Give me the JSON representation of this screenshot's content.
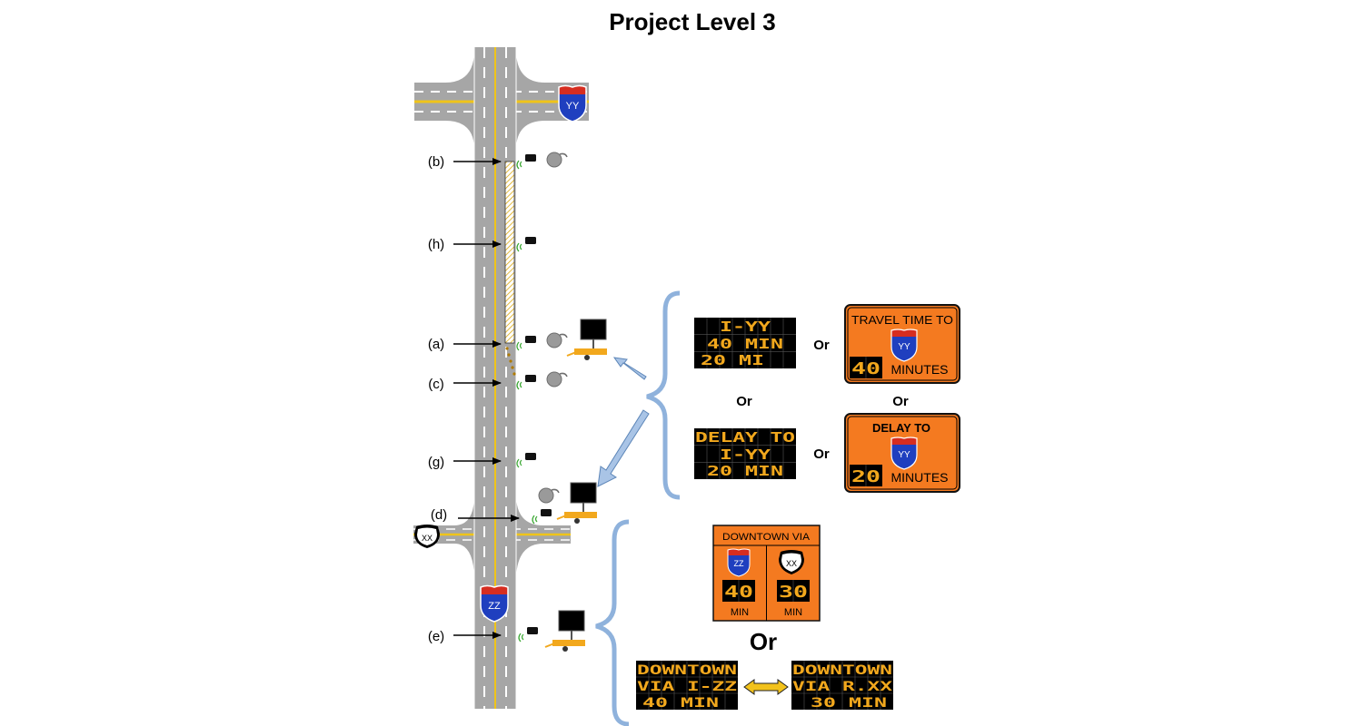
{
  "title": "Project Level 3",
  "labels": {
    "b": "(b)",
    "h": "(h)",
    "a": "(a)",
    "c": "(c)",
    "g": "(g)",
    "d": "(d)",
    "e": "(e)"
  },
  "shields": {
    "yy": "YY",
    "xx": "XX",
    "zz": "ZZ"
  },
  "or_word": "Or",
  "dms": {
    "travel_time": [
      "I-YY",
      "40 MIN",
      "20 MI"
    ],
    "delay": [
      "DELAY TO",
      "I-YY",
      "20 MIN"
    ],
    "downtown_zz": [
      "DOWNTOWN",
      "VIA I-ZZ",
      "40 MIN"
    ],
    "downtown_xx": [
      "DOWNTOWN",
      "VIA R.XX",
      "30 MIN"
    ]
  },
  "static_signs": {
    "travel_time": {
      "heading": "TRAVEL TIME TO",
      "route": "YY",
      "value": "40",
      "unit": "MINUTES"
    },
    "delay": {
      "heading": "DELAY TO",
      "route": "YY",
      "value": "20",
      "unit": "MINUTES"
    },
    "downtown": {
      "heading": "DOWNTOWN VIA",
      "left_route": "ZZ",
      "left_value": "40",
      "left_unit": "MIN",
      "right_route": "XX",
      "right_value": "30",
      "right_unit": "MIN"
    }
  },
  "colors": {
    "road": "#a6a6a6",
    "lane_marking": "#ffffff",
    "center_line": "#f0c419",
    "sign_orange": "#f47a20",
    "dms_background": "#000000",
    "dms_text": "#f2a81d",
    "interstate_blue": "#1f3fbf",
    "interstate_red": "#d62d20",
    "brace": "#8fb2dc",
    "arrow": "#a9c4e6"
  },
  "icons": [
    "detector-icon",
    "camera-icon",
    "portable-dms-icon",
    "interstate-shield-icon",
    "route-shield-icon"
  ]
}
